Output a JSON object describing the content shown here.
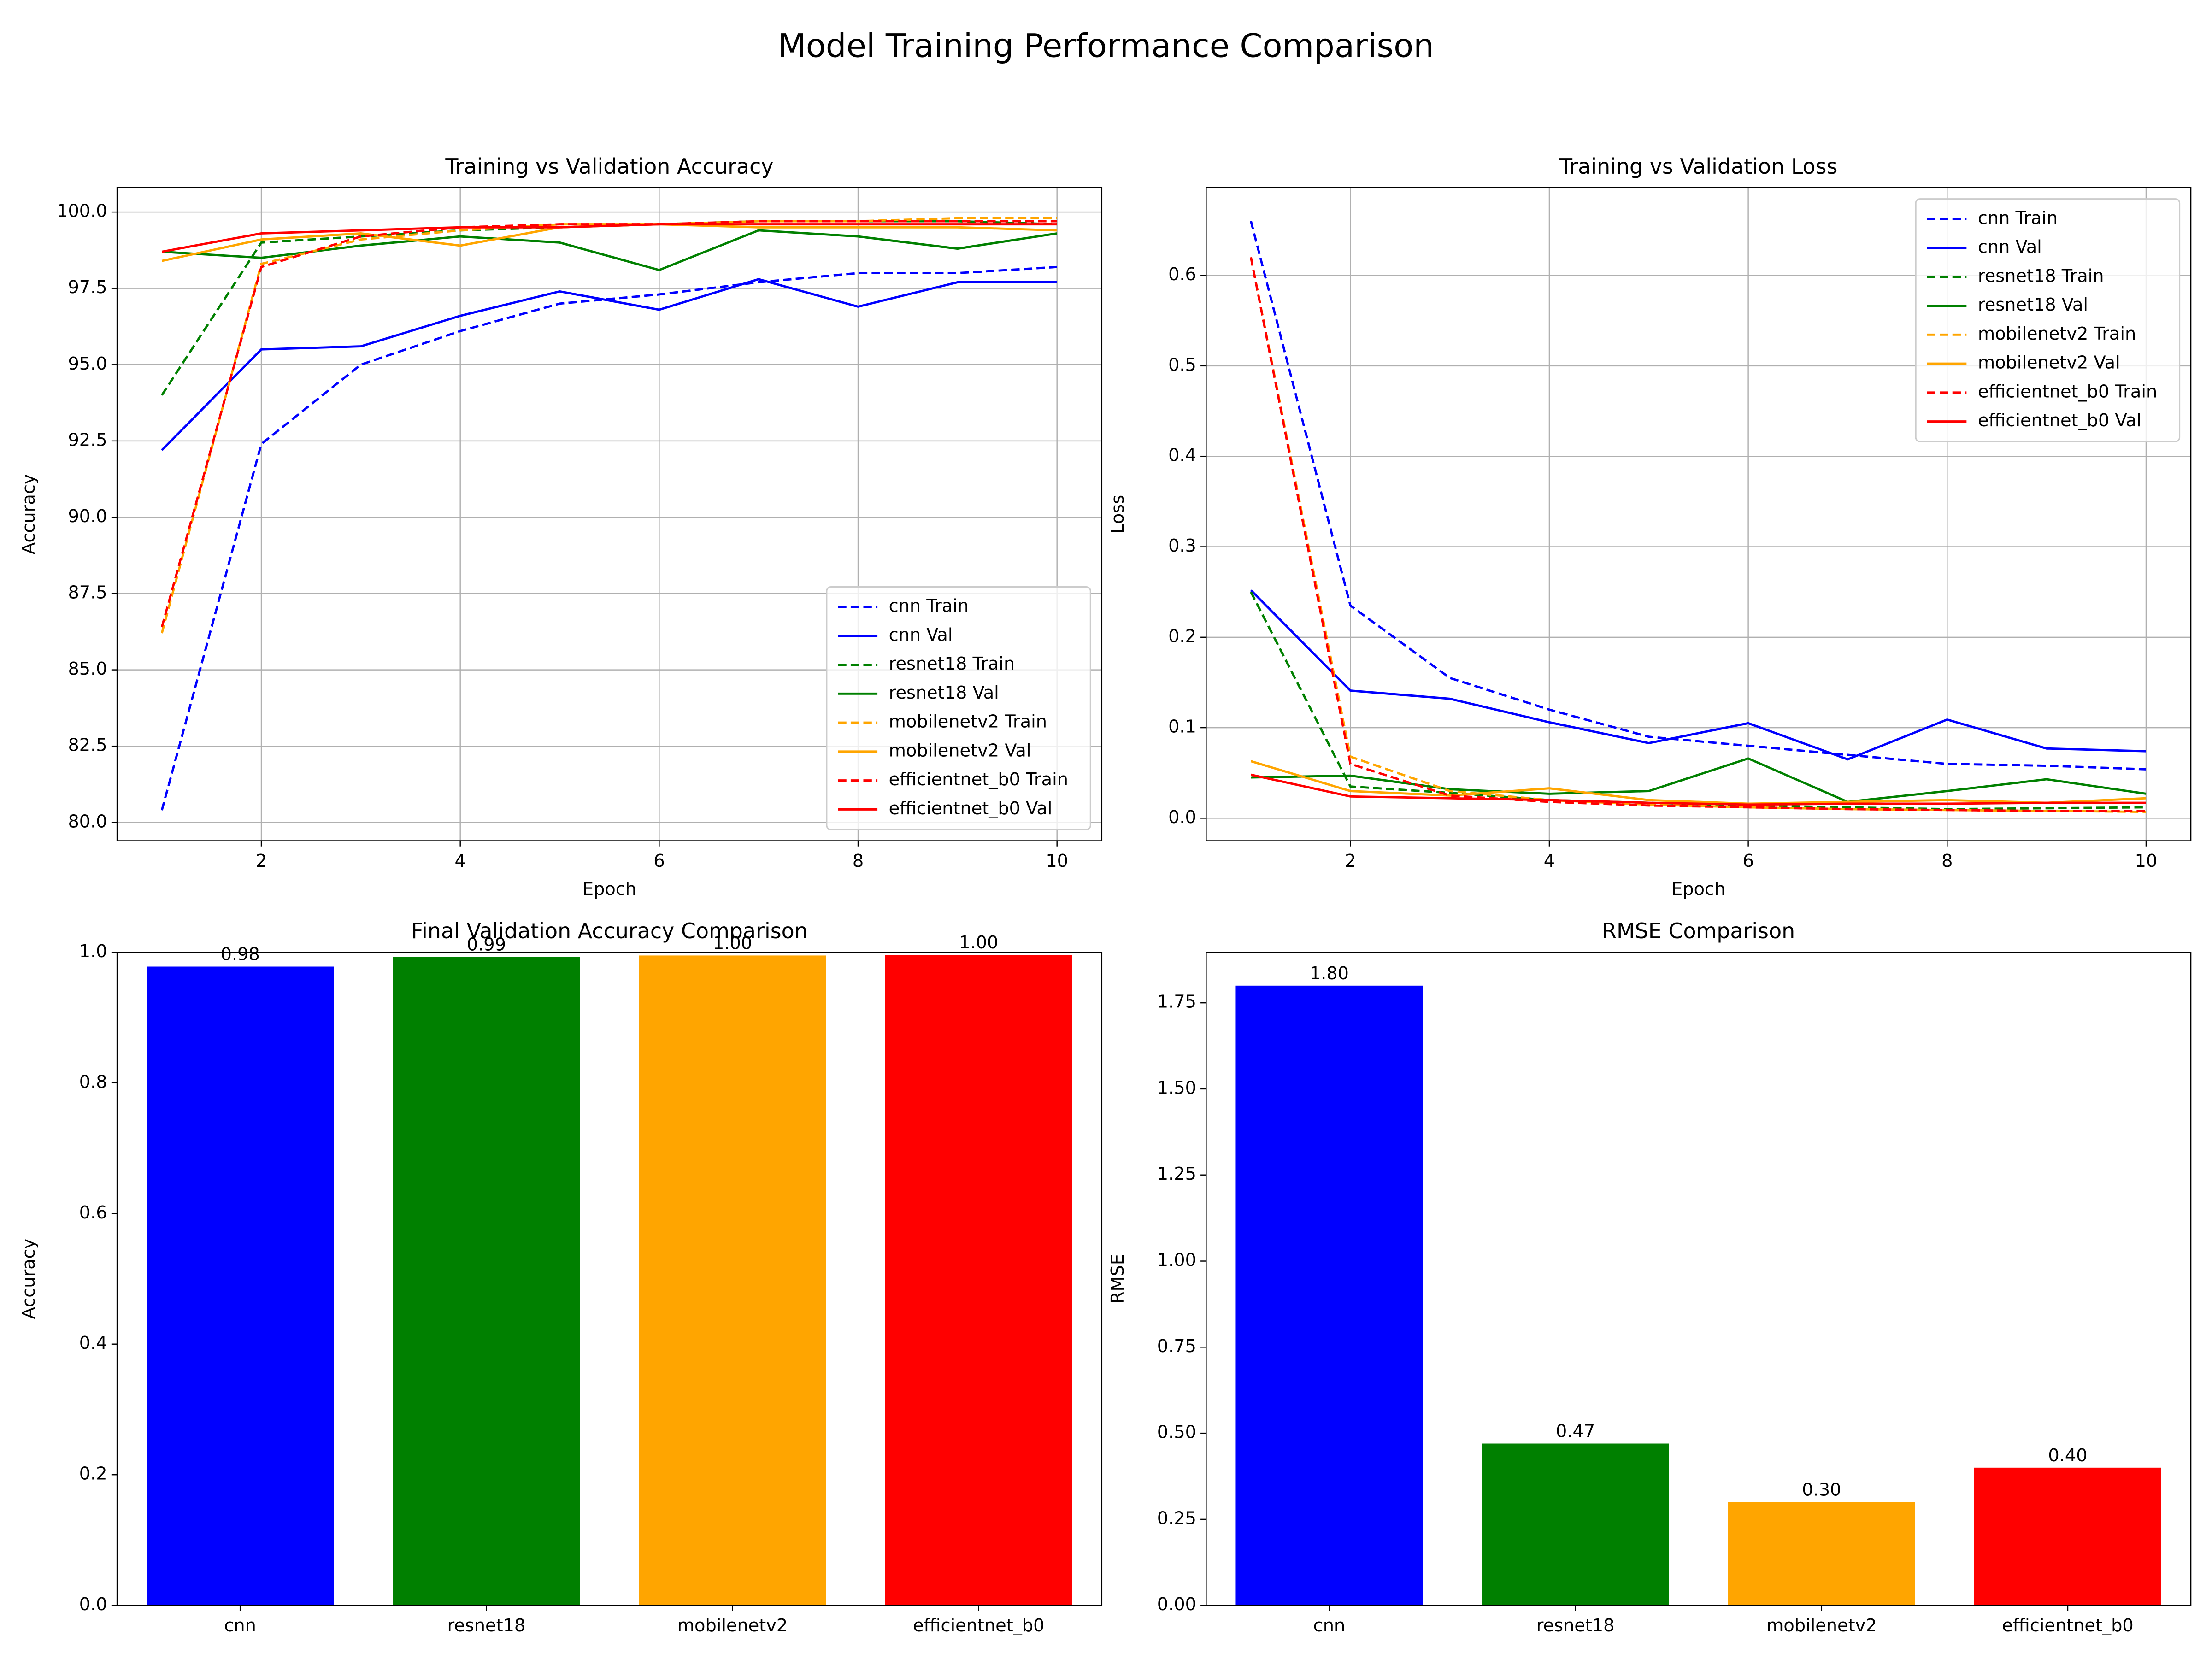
{
  "title": "Model Training Performance Comparison",
  "chart_data": [
    {
      "type": "line",
      "title": "Training vs Validation Accuracy",
      "xlabel": "Epoch",
      "ylabel": "Accuracy",
      "x": [
        1,
        2,
        3,
        4,
        5,
        6,
        7,
        8,
        9,
        10
      ],
      "xlim": [
        0.55,
        10.45
      ],
      "xticks": [
        2,
        4,
        6,
        8,
        10
      ],
      "ylim": [
        79.4,
        100.8
      ],
      "yticks": [
        {
          "value": 80,
          "label": "80.0"
        },
        {
          "value": 82.5,
          "label": "82.5"
        },
        {
          "value": 85,
          "label": "85.0"
        },
        {
          "value": 87.5,
          "label": "87.5"
        },
        {
          "value": 90,
          "label": "90.0"
        },
        {
          "value": 92.5,
          "label": "92.5"
        },
        {
          "value": 95,
          "label": "95.0"
        },
        {
          "value": 97.5,
          "label": "97.5"
        },
        {
          "value": 100,
          "label": "100.0"
        }
      ],
      "grid": true,
      "legend": "lower right",
      "series": [
        {
          "name": "cnn Train",
          "color": "#0000ff",
          "linestyle": "dashed",
          "values": [
            80.4,
            92.4,
            95.0,
            96.1,
            97.0,
            97.3,
            97.7,
            98.0,
            98.0,
            98.2
          ]
        },
        {
          "name": "cnn Val",
          "color": "#0000ff",
          "linestyle": "solid",
          "values": [
            92.2,
            95.5,
            95.6,
            96.6,
            97.4,
            96.8,
            97.8,
            96.9,
            97.7,
            97.7
          ]
        },
        {
          "name": "resnet18 Train",
          "color": "#008000",
          "linestyle": "dashed",
          "values": [
            94.0,
            99.0,
            99.2,
            99.4,
            99.5,
            99.6,
            99.7,
            99.7,
            99.7,
            99.6
          ]
        },
        {
          "name": "resnet18 Val",
          "color": "#008000",
          "linestyle": "solid",
          "values": [
            98.7,
            98.5,
            98.9,
            99.2,
            99.0,
            98.1,
            99.4,
            99.2,
            98.8,
            99.3
          ]
        },
        {
          "name": "mobilenetv2 Train",
          "color": "#ffa500",
          "linestyle": "dashed",
          "values": [
            86.2,
            98.3,
            99.1,
            99.4,
            99.6,
            99.6,
            99.7,
            99.7,
            99.8,
            99.8
          ]
        },
        {
          "name": "mobilenetv2 Val",
          "color": "#ffa500",
          "linestyle": "solid",
          "values": [
            98.4,
            99.1,
            99.3,
            98.9,
            99.5,
            99.6,
            99.5,
            99.5,
            99.5,
            99.4
          ]
        },
        {
          "name": "efficientnet_b0 Train",
          "color": "#ff0000",
          "linestyle": "dashed",
          "values": [
            86.4,
            98.2,
            99.2,
            99.5,
            99.6,
            99.6,
            99.7,
            99.7,
            99.7,
            99.7
          ]
        },
        {
          "name": "efficientnet_b0 Val",
          "color": "#ff0000",
          "linestyle": "solid",
          "values": [
            98.7,
            99.3,
            99.4,
            99.5,
            99.5,
            99.6,
            99.6,
            99.6,
            99.6,
            99.6
          ]
        }
      ]
    },
    {
      "type": "line",
      "title": "Training vs Validation Loss",
      "xlabel": "Epoch",
      "ylabel": "Loss",
      "x": [
        1,
        2,
        3,
        4,
        5,
        6,
        7,
        8,
        9,
        10
      ],
      "xlim": [
        0.55,
        10.45
      ],
      "xticks": [
        2,
        4,
        6,
        8,
        10
      ],
      "ylim": [
        -0.025,
        0.697
      ],
      "yticks": [
        {
          "value": 0,
          "label": "0.0"
        },
        {
          "value": 0.1,
          "label": "0.1"
        },
        {
          "value": 0.2,
          "label": "0.2"
        },
        {
          "value": 0.3,
          "label": "0.3"
        },
        {
          "value": 0.4,
          "label": "0.4"
        },
        {
          "value": 0.5,
          "label": "0.5"
        },
        {
          "value": 0.6,
          "label": "0.6"
        }
      ],
      "grid": true,
      "legend": "upper right",
      "series": [
        {
          "name": "cnn Train",
          "color": "#0000ff",
          "linestyle": "dashed",
          "values": [
            0.66,
            0.235,
            0.155,
            0.12,
            0.09,
            0.08,
            0.07,
            0.06,
            0.058,
            0.054
          ]
        },
        {
          "name": "cnn Val",
          "color": "#0000ff",
          "linestyle": "solid",
          "values": [
            0.252,
            0.141,
            0.132,
            0.106,
            0.083,
            0.105,
            0.065,
            0.109,
            0.077,
            0.074
          ]
        },
        {
          "name": "resnet18 Train",
          "color": "#008000",
          "linestyle": "dashed",
          "values": [
            0.25,
            0.035,
            0.028,
            0.02,
            0.017,
            0.014,
            0.012,
            0.01,
            0.011,
            0.012
          ]
        },
        {
          "name": "resnet18 Val",
          "color": "#008000",
          "linestyle": "solid",
          "values": [
            0.045,
            0.047,
            0.032,
            0.027,
            0.03,
            0.066,
            0.018,
            0.03,
            0.043,
            0.027
          ]
        },
        {
          "name": "mobilenetv2 Train",
          "color": "#ffa500",
          "linestyle": "dashed",
          "values": [
            0.62,
            0.068,
            0.03,
            0.02,
            0.015,
            0.012,
            0.01,
            0.009,
            0.008,
            0.007
          ]
        },
        {
          "name": "mobilenetv2 Val",
          "color": "#ffa500",
          "linestyle": "solid",
          "values": [
            0.063,
            0.03,
            0.025,
            0.033,
            0.02,
            0.016,
            0.018,
            0.02,
            0.017,
            0.022
          ]
        },
        {
          "name": "efficientnet_b0 Train",
          "color": "#ff0000",
          "linestyle": "dashed",
          "values": [
            0.62,
            0.06,
            0.025,
            0.018,
            0.014,
            0.012,
            0.01,
            0.009,
            0.008,
            0.008
          ]
        },
        {
          "name": "efficientnet_b0 Val",
          "color": "#ff0000",
          "linestyle": "solid",
          "values": [
            0.048,
            0.024,
            0.022,
            0.02,
            0.017,
            0.015,
            0.016,
            0.016,
            0.017,
            0.017
          ]
        }
      ]
    },
    {
      "type": "bar",
      "title": "Final Validation Accuracy Comparison",
      "ylabel": "Accuracy",
      "categories": [
        "cnn",
        "resnet18",
        "mobilenetv2",
        "efficientnet_b0"
      ],
      "values": [
        0.978,
        0.993,
        0.995,
        0.996
      ],
      "value_labels": [
        "0.98",
        "0.99",
        "1.00",
        "1.00"
      ],
      "colors": [
        "#0000ff",
        "#008000",
        "#ffa500",
        "#ff0000"
      ],
      "ylim": [
        0,
        1
      ],
      "yticks": [
        {
          "value": 0,
          "label": "0.0"
        },
        {
          "value": 0.2,
          "label": "0.2"
        },
        {
          "value": 0.4,
          "label": "0.4"
        },
        {
          "value": 0.6,
          "label": "0.6"
        },
        {
          "value": 0.8,
          "label": "0.8"
        },
        {
          "value": 1,
          "label": "1.0"
        }
      ],
      "grid": false
    },
    {
      "type": "bar",
      "title": "RMSE Comparison",
      "ylabel": "RMSE",
      "categories": [
        "cnn",
        "resnet18",
        "mobilenetv2",
        "efficientnet_b0"
      ],
      "values": [
        1.8,
        0.47,
        0.3,
        0.4
      ],
      "value_labels": [
        "1.80",
        "0.47",
        "0.30",
        "0.40"
      ],
      "colors": [
        "#0000ff",
        "#008000",
        "#ffa500",
        "#ff0000"
      ],
      "ylim": [
        0,
        1.897
      ],
      "yticks": [
        {
          "value": 0,
          "label": "0.00"
        },
        {
          "value": 0.25,
          "label": "0.25"
        },
        {
          "value": 0.5,
          "label": "0.50"
        },
        {
          "value": 0.75,
          "label": "0.75"
        },
        {
          "value": 1,
          "label": "1.00"
        },
        {
          "value": 1.25,
          "label": "1.25"
        },
        {
          "value": 1.5,
          "label": "1.50"
        },
        {
          "value": 1.75,
          "label": "1.75"
        }
      ],
      "grid": false
    }
  ]
}
